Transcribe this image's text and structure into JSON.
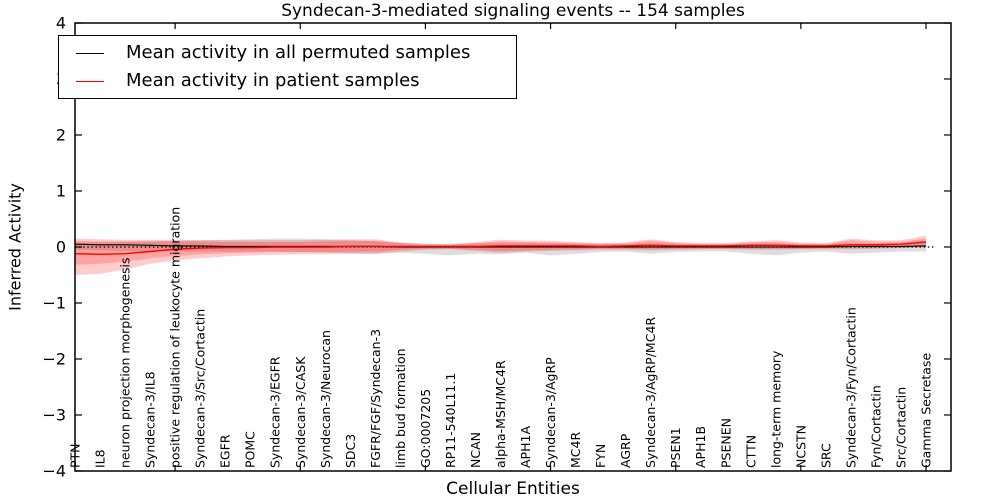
{
  "chart_data": {
    "type": "line",
    "title": "Syndecan-3-mediated signaling events -- 154 samples",
    "xlabel": "Cellular Entities",
    "ylabel": "Inferred Activity",
    "ylim": [
      -4,
      4
    ],
    "yticks": [
      4,
      3,
      2,
      1,
      0,
      -1,
      -2,
      -3,
      -4
    ],
    "xtick_step": 5,
    "grid": false,
    "legend_position": "upper-left",
    "zero_line": 0,
    "categories": [
      "PTN",
      "IL8",
      "neuron projection morphogenesis",
      "Syndecan-3/IL8",
      "positive regulation of leukocyte migration",
      "Syndecan-3/Src/Cortactin",
      "EGFR",
      "POMC",
      "Syndecan-3/EGFR",
      "Syndecan-3/CASK",
      "Syndecan-3/Neurocan",
      "SDC3",
      "FGFR/FGF/Syndecan-3",
      "limb bud formation",
      "GO:0007205",
      "RP11-540L11.1",
      "NCAN",
      "alpha-MSH/MC4R",
      "APH1A",
      "Syndecan-3/AgRP",
      "MC4R",
      "FYN",
      "AGRP",
      "Syndecan-3/AgRP/MC4R",
      "PSEN1",
      "APH1B",
      "PSENEN",
      "CTTN",
      "long-term memory",
      "NCSTN",
      "SRC",
      "Syndecan-3/Fyn/Cortactin",
      "Fyn/Cortactin",
      "Src/Cortactin",
      "Gamma Secretase"
    ],
    "series": [
      {
        "name": "Mean activity in all permuted samples",
        "color": "#000000",
        "width": 1.1,
        "values": [
          0.05,
          0.04,
          0.04,
          0.03,
          0.02,
          0.02,
          0.01,
          0.01,
          0.01,
          0.01,
          0.01,
          0.01,
          0.01,
          0.0,
          0.0,
          0.0,
          0.0,
          0.0,
          0.0,
          0.0,
          0.0,
          0.0,
          0.0,
          0.0,
          0.0,
          0.0,
          0.0,
          0.0,
          0.0,
          0.0,
          0.0,
          0.01,
          0.01,
          0.01,
          0.02
        ]
      },
      {
        "name": "Mean activity in patient samples",
        "color": "#ff0000",
        "width": 1.4,
        "values": [
          -0.12,
          -0.13,
          -0.12,
          -0.08,
          -0.04,
          -0.02,
          -0.01,
          -0.01,
          0.0,
          0.0,
          0.0,
          0.01,
          0.01,
          0.01,
          0.01,
          0.01,
          0.01,
          0.02,
          0.02,
          0.02,
          0.02,
          0.01,
          0.02,
          0.03,
          0.02,
          0.02,
          0.02,
          0.03,
          0.03,
          0.02,
          0.02,
          0.04,
          0.04,
          0.05,
          0.09
        ]
      }
    ],
    "bands": [
      {
        "name": "permuted-samples-range",
        "color": "#999999",
        "opacity": 0.32,
        "lower": [
          -0.05,
          -0.06,
          -0.07,
          -0.08,
          -0.08,
          -0.08,
          -0.08,
          -0.08,
          -0.08,
          -0.09,
          -0.1,
          -0.11,
          -0.12,
          -0.1,
          -0.12,
          -0.15,
          -0.12,
          -0.13,
          -0.1,
          -0.15,
          -0.12,
          -0.09,
          -0.08,
          -0.12,
          -0.09,
          -0.08,
          -0.08,
          -0.12,
          -0.15,
          -0.1,
          -0.08,
          -0.12,
          -0.1,
          -0.08,
          -0.08
        ],
        "upper": [
          0.08,
          0.08,
          0.09,
          0.1,
          0.11,
          0.12,
          0.13,
          0.14,
          0.15,
          0.15,
          0.14,
          0.12,
          0.1,
          0.08,
          0.06,
          0.05,
          0.06,
          0.07,
          0.07,
          0.07,
          0.06,
          0.06,
          0.06,
          0.07,
          0.06,
          0.05,
          0.05,
          0.06,
          0.06,
          0.05,
          0.05,
          0.06,
          0.05,
          0.05,
          0.06
        ]
      },
      {
        "name": "patient-samples-range-outer",
        "color": "#ff0000",
        "opacity": 0.2,
        "lower": [
          -0.5,
          -0.48,
          -0.4,
          -0.3,
          -0.24,
          -0.2,
          -0.17,
          -0.15,
          -0.14,
          -0.13,
          -0.13,
          -0.12,
          -0.12,
          -0.08,
          -0.05,
          -0.04,
          -0.07,
          -0.1,
          -0.08,
          -0.07,
          -0.06,
          -0.05,
          -0.05,
          -0.06,
          -0.05,
          -0.04,
          -0.04,
          -0.05,
          -0.05,
          -0.04,
          -0.04,
          -0.04,
          -0.03,
          -0.02,
          0.0
        ],
        "upper": [
          0.15,
          0.14,
          0.13,
          0.13,
          0.13,
          0.12,
          0.12,
          0.12,
          0.12,
          0.12,
          0.13,
          0.14,
          0.14,
          0.08,
          0.05,
          0.05,
          0.09,
          0.13,
          0.11,
          0.11,
          0.09,
          0.07,
          0.08,
          0.14,
          0.09,
          0.07,
          0.07,
          0.1,
          0.12,
          0.08,
          0.07,
          0.15,
          0.12,
          0.12,
          0.2
        ]
      },
      {
        "name": "patient-samples-range-inner",
        "color": "#ff0000",
        "opacity": 0.2,
        "lower": [
          -0.32,
          -0.3,
          -0.26,
          -0.2,
          -0.16,
          -0.13,
          -0.11,
          -0.1,
          -0.09,
          -0.09,
          -0.09,
          -0.08,
          -0.08,
          -0.05,
          -0.03,
          -0.03,
          -0.05,
          -0.07,
          -0.06,
          -0.05,
          -0.04,
          -0.03,
          -0.03,
          -0.04,
          -0.03,
          -0.03,
          -0.03,
          -0.03,
          -0.03,
          -0.03,
          -0.02,
          -0.02,
          -0.02,
          -0.01,
          0.01
        ],
        "upper": [
          0.11,
          0.1,
          0.1,
          0.1,
          0.1,
          0.1,
          0.09,
          0.09,
          0.09,
          0.09,
          0.1,
          0.11,
          0.11,
          0.06,
          0.04,
          0.04,
          0.07,
          0.1,
          0.09,
          0.08,
          0.07,
          0.05,
          0.06,
          0.11,
          0.07,
          0.05,
          0.05,
          0.08,
          0.09,
          0.06,
          0.05,
          0.12,
          0.09,
          0.09,
          0.15
        ]
      }
    ]
  }
}
